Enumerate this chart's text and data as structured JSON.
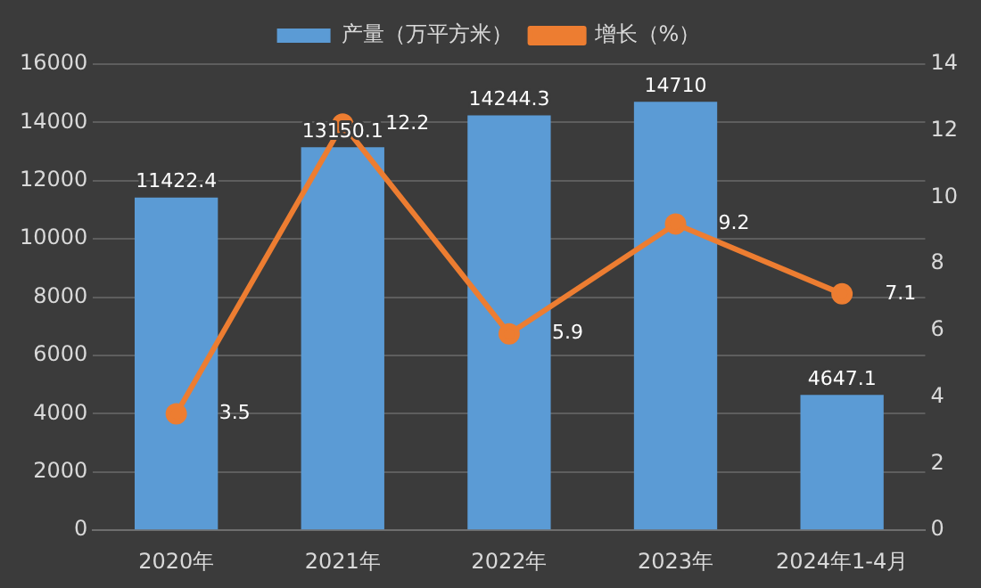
{
  "chart_data": {
    "type": "bar",
    "categories": [
      "2020年",
      "2021年",
      "2022年",
      "2023年",
      "2024年1-4月"
    ],
    "series": [
      {
        "name": "产量（万平方米）",
        "color": "#5b9bd5",
        "values": [
          11422.4,
          13150.1,
          14244.3,
          14710,
          4647.1
        ]
      },
      {
        "name": "增长（%）",
        "type": "line",
        "axis": "y2",
        "color": "#ed7d31",
        "values": [
          3.5,
          12.2,
          5.9,
          9.2,
          7.1
        ]
      }
    ],
    "ylim": [
      0,
      16000
    ],
    "yticks": [
      0,
      2000,
      4000,
      6000,
      8000,
      10000,
      12000,
      14000,
      16000
    ],
    "y2lim": [
      0,
      14
    ],
    "y2ticks": [
      0,
      2,
      4,
      6,
      8,
      10,
      12,
      14
    ],
    "grid": "y",
    "legend": "top",
    "marker": "circle",
    "data_labels": true
  }
}
